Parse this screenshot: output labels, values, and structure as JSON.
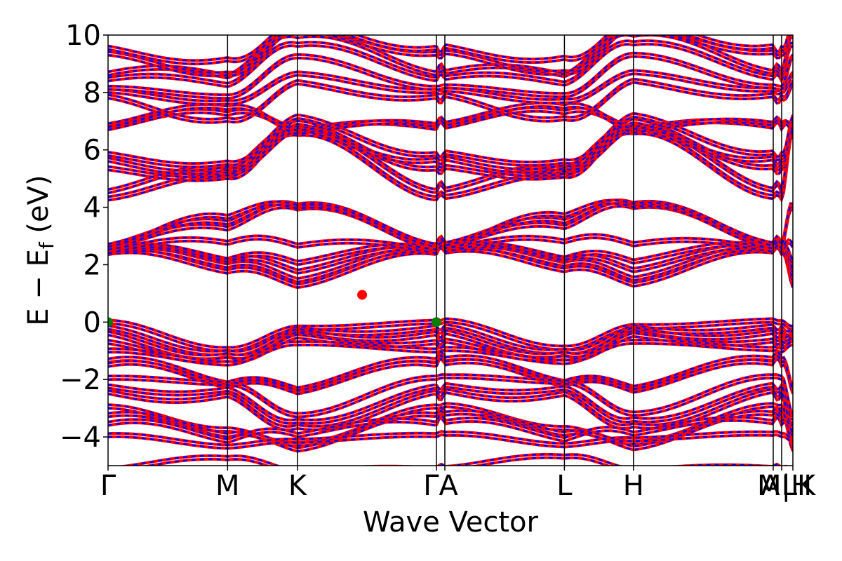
{
  "chart_data": {
    "type": "line",
    "title": "",
    "xlabel": "Wave Vector",
    "ylabel": "E − E",
    "ylabel_subscript": "f",
    "ylabel_unit": " (eV)",
    "ylim": [
      -5,
      10
    ],
    "yticks": [
      -4,
      -2,
      0,
      2,
      4,
      6,
      8,
      10
    ],
    "ytick_labels": [
      "−4",
      "−2",
      "0",
      "2",
      "4",
      "6",
      "8",
      "10"
    ],
    "kpath": [
      {
        "label": "Γ",
        "x": 0.0
      },
      {
        "label": "M",
        "x": 0.1745
      },
      {
        "label": "K",
        "x": 0.2766
      },
      {
        "label": "Γ",
        "x": 0.4795
      },
      {
        "label": "A",
        "x": 0.4918
      },
      {
        "label": "L",
        "x": 0.6664
      },
      {
        "label": "H",
        "x": 0.7672
      },
      {
        "label": "A",
        "x": 0.9713
      },
      {
        "label": "L",
        "x": 0.9836
      },
      {
        "label": "M",
        "x": 0.9836
      },
      {
        "label": "H",
        "x": 1.0
      },
      {
        "label": "K",
        "x": 1.0
      }
    ],
    "tick_text": [
      "Γ",
      "M",
      "K",
      "ΓA",
      "L",
      "H",
      "A",
      "M|H",
      "LK"
    ],
    "grid": false,
    "series": [
      {
        "color": "#ff0000",
        "style": "solid"
      },
      {
        "color": "#0000ff",
        "style": "dashed"
      }
    ],
    "vbm": [
      {
        "x": 0.0,
        "y": 0.0
      },
      {
        "x": 0.4795,
        "y": 0.0
      }
    ],
    "cbm": [
      {
        "x": 0.371,
        "y": 0.95
      }
    ],
    "vbm_color": "#008000",
    "cbm_color": "#ff0000"
  }
}
